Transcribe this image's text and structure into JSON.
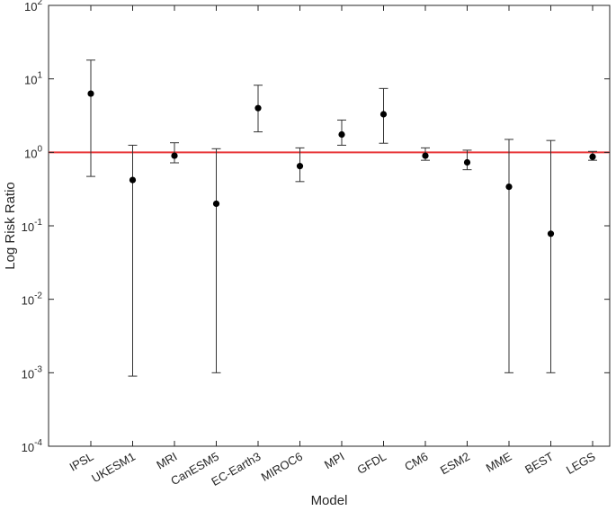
{
  "chart_data": {
    "type": "scatter",
    "xlabel": "Model",
    "ylabel": "Log Risk Ratio",
    "yscale": "log",
    "ylim": [
      0.0001,
      100
    ],
    "grid": false,
    "y_ticks": [
      {
        "value": 0.0001,
        "base": "10",
        "exp": "-4"
      },
      {
        "value": 0.001,
        "base": "10",
        "exp": "-3"
      },
      {
        "value": 0.01,
        "base": "10",
        "exp": "-2"
      },
      {
        "value": 0.1,
        "base": "10",
        "exp": "-1"
      },
      {
        "value": 1,
        "base": "10",
        "exp": "0"
      },
      {
        "value": 10,
        "base": "10",
        "exp": "1"
      },
      {
        "value": 100,
        "base": "10",
        "exp": "2"
      }
    ],
    "reference_line": {
      "y": 1,
      "color": "#e8383a"
    },
    "categories": [
      "IPSL",
      "UKESM1",
      "MRI",
      "CanESM5",
      "EC-Earth3",
      "MIROC6",
      "MPI",
      "GFDL",
      "CM6",
      "ESM2",
      "MME",
      "BEST",
      "LEGS"
    ],
    "values": [
      6.3,
      0.42,
      0.9,
      0.2,
      4.0,
      0.65,
      1.75,
      3.3,
      0.9,
      0.73,
      0.34,
      0.078,
      0.87
    ],
    "lower": [
      0.47,
      0.0009,
      0.72,
      0.001,
      1.9,
      0.4,
      1.25,
      1.33,
      0.78,
      0.58,
      0.001,
      0.001,
      0.78
    ],
    "upper": [
      18,
      1.25,
      1.35,
      1.12,
      8.2,
      1.15,
      2.75,
      7.4,
      1.15,
      1.07,
      1.5,
      1.45,
      1.03
    ]
  }
}
